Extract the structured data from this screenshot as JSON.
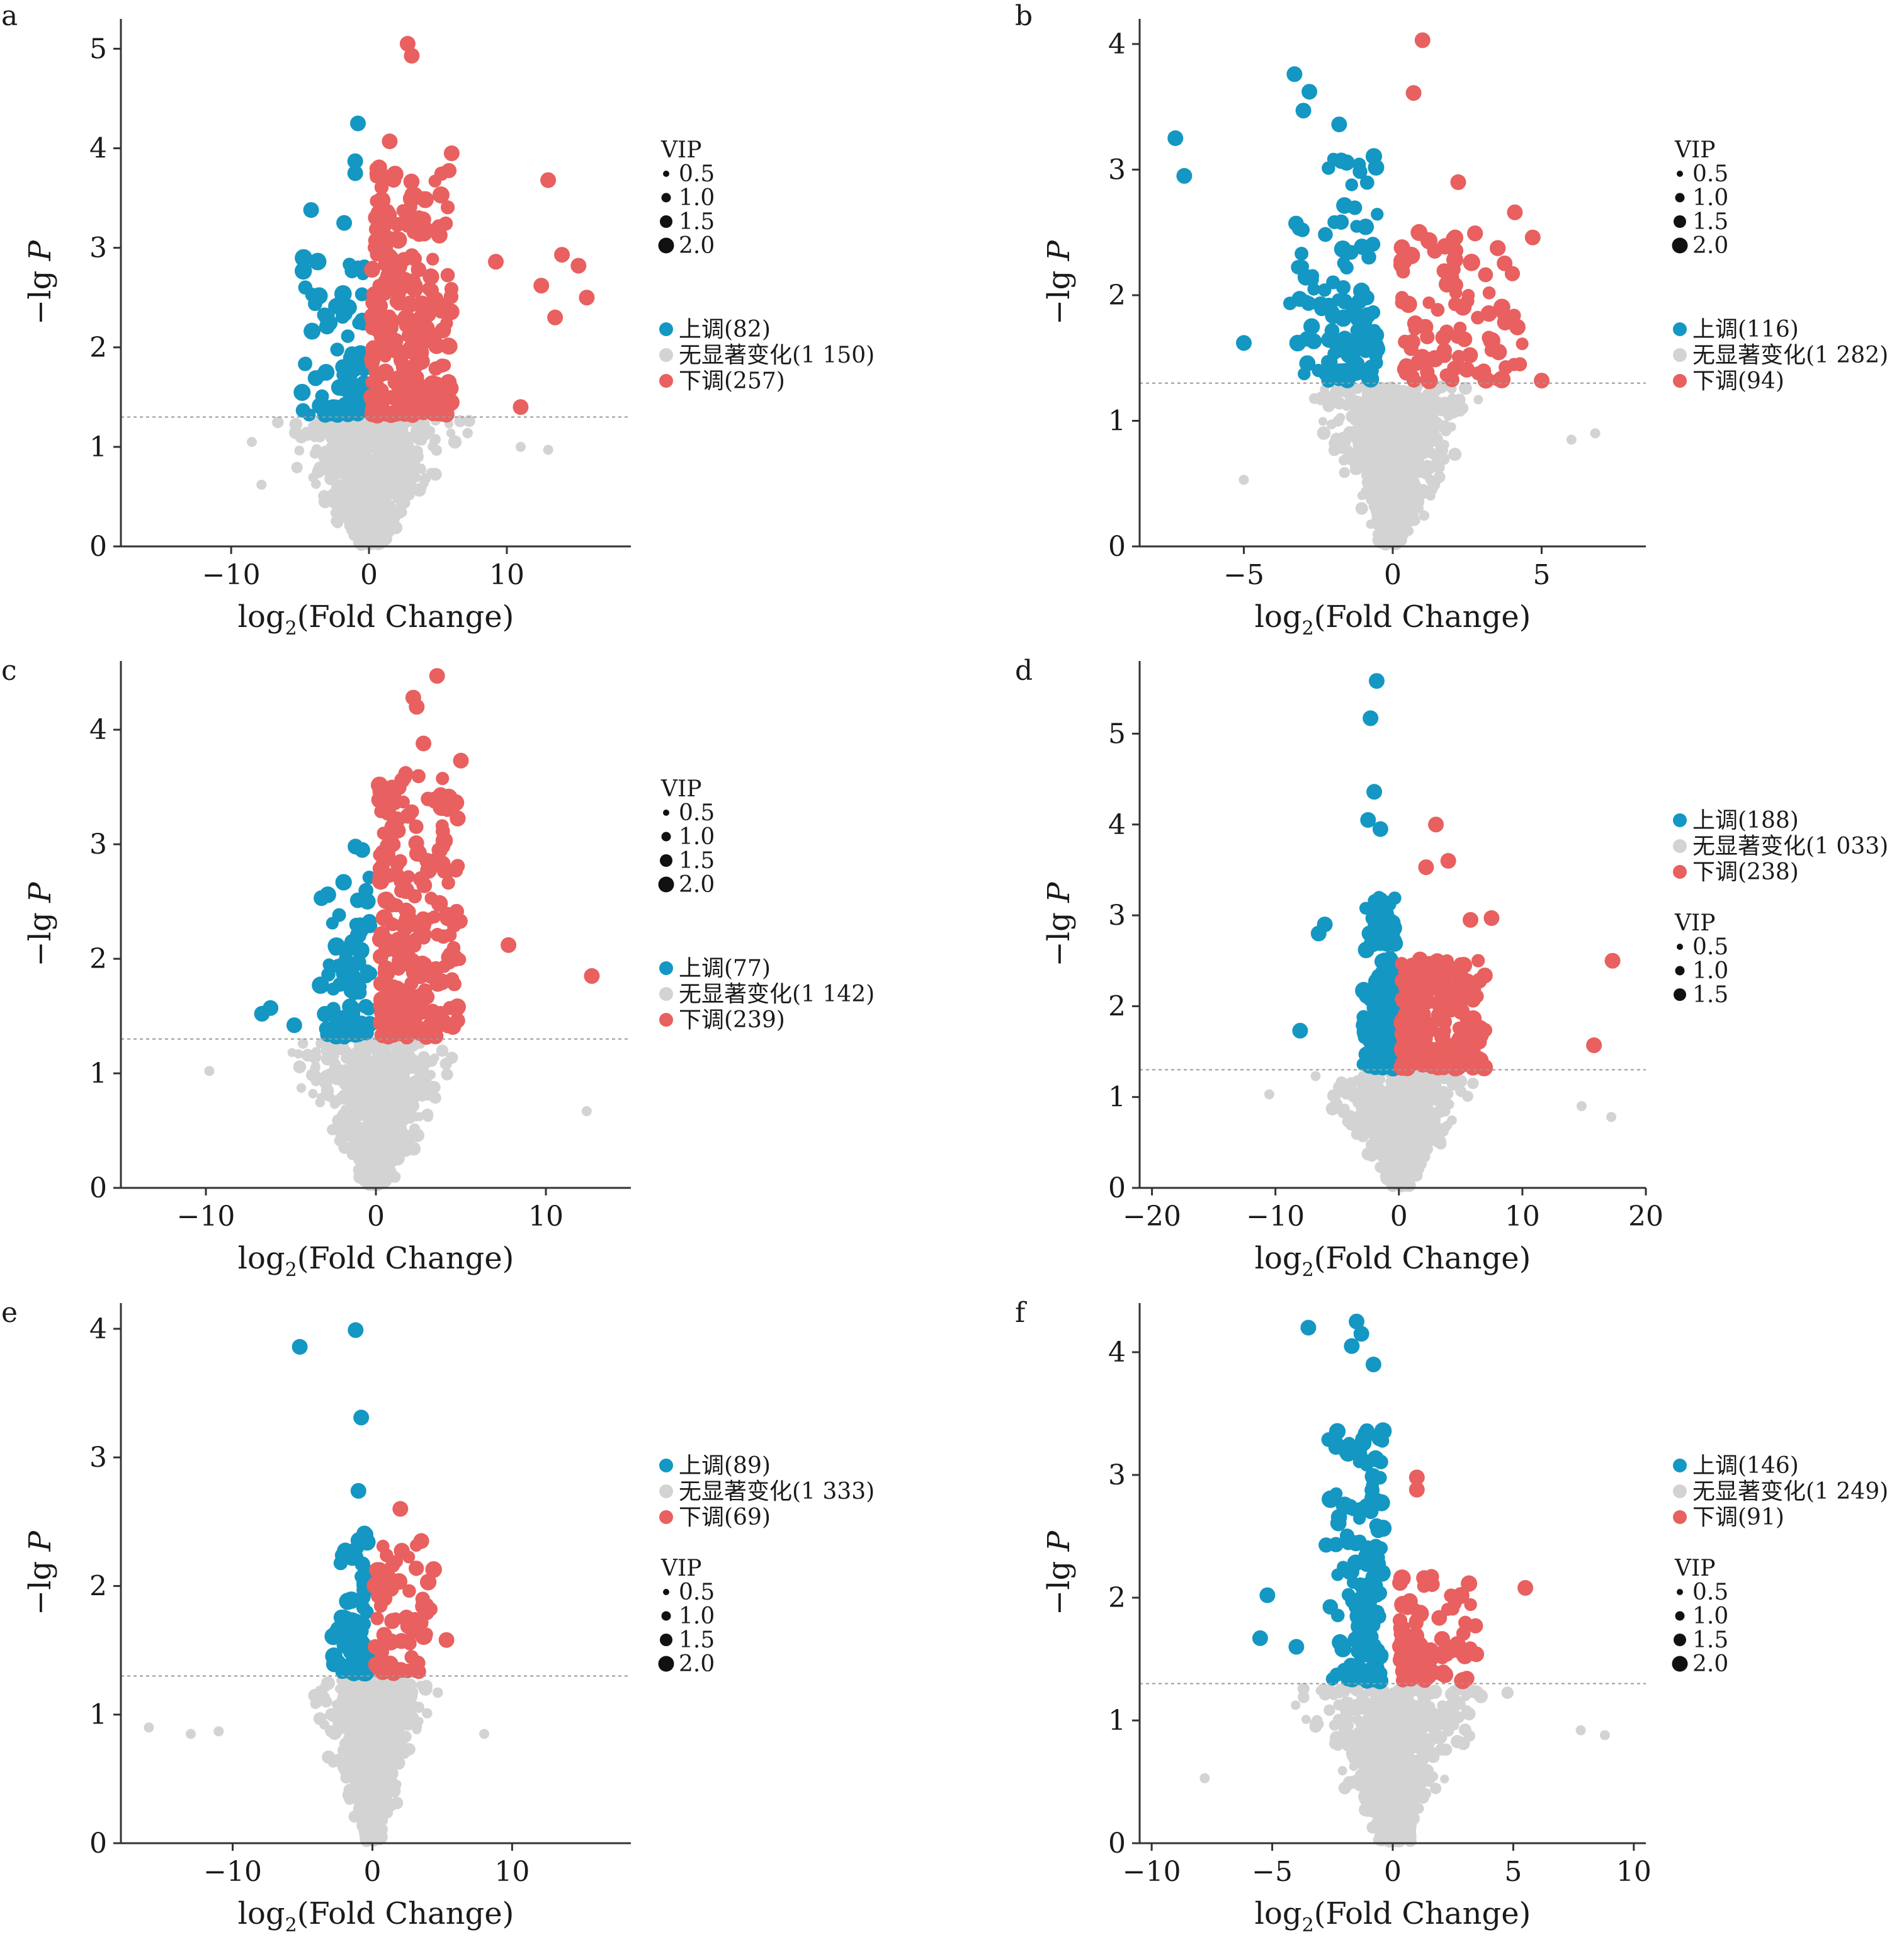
{
  "colors": {
    "up": "#1497c2",
    "none": "#d3d3d3",
    "down": "#e8605f",
    "threshold": "#999999",
    "axis": "#333333"
  },
  "panels": [
    {
      "letter": "a",
      "vip_first": true,
      "vip_sizes": [
        "0.5",
        "1.0",
        "1.5",
        "2.0"
      ],
      "chart_data": {
        "type": "scatter",
        "x_label": "log2(Fold Change)",
        "y_label": "−lg P",
        "xlim": [
          -18,
          19
        ],
        "ylim": [
          0,
          5.3
        ],
        "x_ticks": [
          -10,
          0,
          10
        ],
        "y_ticks": [
          0,
          1,
          2,
          3,
          4,
          5
        ],
        "threshold": 1.3,
        "vip_title": "VIP",
        "legend": [
          {
            "key": "up",
            "label": "上调(82)",
            "count": 82
          },
          {
            "key": "none",
            "label": "无显著变化(1 150)",
            "count": 1150
          },
          {
            "key": "down",
            "label": "下调(257)",
            "count": 257
          }
        ],
        "x_spread": 4.2,
        "up_x": [
          -5,
          -0.3
        ],
        "down_x": [
          0.2,
          6
        ],
        "up_max": 2.9,
        "down_max": 3.8,
        "highlights": [
          {
            "x": 2.8,
            "y": 5.05,
            "g": "down"
          },
          {
            "x": 3.1,
            "y": 4.93,
            "g": "down"
          },
          {
            "x": -0.8,
            "y": 4.25,
            "g": "up"
          },
          {
            "x": 1.5,
            "y": 4.07,
            "g": "down"
          },
          {
            "x": -1.0,
            "y": 3.87,
            "g": "up"
          },
          {
            "x": -1.0,
            "y": 3.75,
            "g": "up"
          },
          {
            "x": 6.0,
            "y": 3.95,
            "g": "down"
          },
          {
            "x": 13.0,
            "y": 3.68,
            "g": "down"
          },
          {
            "x": -4.2,
            "y": 3.38,
            "g": "up"
          },
          {
            "x": -1.8,
            "y": 3.25,
            "g": "up"
          },
          {
            "x": 14.0,
            "y": 2.93,
            "g": "down"
          },
          {
            "x": 15.2,
            "y": 2.82,
            "g": "down"
          },
          {
            "x": 9.2,
            "y": 2.86,
            "g": "down"
          },
          {
            "x": 15.8,
            "y": 2.5,
            "g": "down"
          },
          {
            "x": 12.5,
            "y": 2.62,
            "g": "down"
          },
          {
            "x": 13.5,
            "y": 2.3,
            "g": "down"
          },
          {
            "x": 11.0,
            "y": 1.4,
            "g": "down"
          },
          {
            "x": -8.5,
            "y": 1.05,
            "g": "none"
          },
          {
            "x": 13.0,
            "y": 0.97,
            "g": "none"
          },
          {
            "x": 11.0,
            "y": 1.0,
            "g": "none"
          },
          {
            "x": -7.8,
            "y": 0.62,
            "g": "none"
          }
        ]
      }
    },
    {
      "letter": "b",
      "vip_first": true,
      "vip_sizes": [
        "0.5",
        "1.0",
        "1.5",
        "2.0"
      ],
      "chart_data": {
        "type": "scatter",
        "x_label": "log2(Fold Change)",
        "y_label": "−lg P",
        "xlim": [
          -8.5,
          8.5
        ],
        "ylim": [
          0,
          4.2
        ],
        "x_ticks": [
          -5,
          0,
          5
        ],
        "y_ticks": [
          0,
          1,
          2,
          3,
          4
        ],
        "threshold": 1.3,
        "vip_title": "VIP",
        "legend": [
          {
            "key": "up",
            "label": "上调(116)",
            "count": 116
          },
          {
            "key": "none",
            "label": "无显著变化(1 282)",
            "count": 1282
          },
          {
            "key": "down",
            "label": "下调(94)",
            "count": 94
          }
        ],
        "x_spread": 1.8,
        "up_x": [
          -3.5,
          -0.5
        ],
        "down_x": [
          0.3,
          4.5
        ],
        "up_max": 3.1,
        "down_max": 2.6,
        "highlights": [
          {
            "x": -7.3,
            "y": 3.25,
            "g": "up"
          },
          {
            "x": -7.0,
            "y": 2.95,
            "g": "up"
          },
          {
            "x": -3.3,
            "y": 3.76,
            "g": "up"
          },
          {
            "x": -2.8,
            "y": 3.62,
            "g": "up"
          },
          {
            "x": -3.0,
            "y": 3.47,
            "g": "up"
          },
          {
            "x": -1.8,
            "y": 3.36,
            "g": "up"
          },
          {
            "x": 1.0,
            "y": 4.03,
            "g": "down"
          },
          {
            "x": 0.7,
            "y": 3.61,
            "g": "down"
          },
          {
            "x": 2.2,
            "y": 2.9,
            "g": "down"
          },
          {
            "x": 4.1,
            "y": 2.66,
            "g": "down"
          },
          {
            "x": 4.7,
            "y": 2.46,
            "g": "down"
          },
          {
            "x": -5.0,
            "y": 1.62,
            "g": "up"
          },
          {
            "x": 5.0,
            "y": 1.32,
            "g": "down"
          },
          {
            "x": 6.8,
            "y": 0.9,
            "g": "none"
          },
          {
            "x": 6.0,
            "y": 0.85,
            "g": "none"
          },
          {
            "x": -5.0,
            "y": 0.53,
            "g": "none"
          }
        ]
      }
    },
    {
      "letter": "c",
      "vip_first": true,
      "vip_sizes": [
        "0.5",
        "1.0",
        "1.5",
        "2.0"
      ],
      "chart_data": {
        "type": "scatter",
        "x_label": "log2(Fold Change)",
        "y_label": "−lg P",
        "xlim": [
          -15,
          15
        ],
        "ylim": [
          0,
          4.6
        ],
        "x_ticks": [
          -10,
          0,
          10
        ],
        "y_ticks": [
          0,
          1,
          2,
          3,
          4
        ],
        "threshold": 1.3,
        "vip_title": "VIP",
        "legend": [
          {
            "key": "up",
            "label": "上调(77)",
            "count": 77
          },
          {
            "key": "none",
            "label": "无显著变化(1 142)",
            "count": 1142
          },
          {
            "key": "down",
            "label": "下调(239)",
            "count": 239
          }
        ],
        "x_spread": 3.2,
        "up_x": [
          -3.5,
          -0.3
        ],
        "down_x": [
          0.2,
          5
        ],
        "up_max": 2.7,
        "down_max": 3.6,
        "highlights": [
          {
            "x": 3.6,
            "y": 4.47,
            "g": "down"
          },
          {
            "x": 2.2,
            "y": 4.28,
            "g": "down"
          },
          {
            "x": 2.4,
            "y": 4.2,
            "g": "down"
          },
          {
            "x": 2.8,
            "y": 3.88,
            "g": "down"
          },
          {
            "x": 5.0,
            "y": 3.73,
            "g": "down"
          },
          {
            "x": -1.2,
            "y": 2.98,
            "g": "up"
          },
          {
            "x": -0.8,
            "y": 2.95,
            "g": "up"
          },
          {
            "x": -3.2,
            "y": 2.53,
            "g": "up"
          },
          {
            "x": 7.8,
            "y": 2.12,
            "g": "down"
          },
          {
            "x": 12.7,
            "y": 1.85,
            "g": "down"
          },
          {
            "x": -6.2,
            "y": 1.57,
            "g": "up"
          },
          {
            "x": -6.7,
            "y": 1.52,
            "g": "up"
          },
          {
            "x": -4.8,
            "y": 1.42,
            "g": "up"
          },
          {
            "x": -9.8,
            "y": 1.02,
            "g": "none"
          },
          {
            "x": 12.4,
            "y": 0.67,
            "g": "none"
          }
        ]
      }
    },
    {
      "letter": "d",
      "vip_first": false,
      "vip_sizes": [
        "0.5",
        "1.0",
        "1.5"
      ],
      "chart_data": {
        "type": "scatter",
        "x_label": "log2(Fold Change)",
        "y_label": "−lg P",
        "xlim": [
          -21,
          20
        ],
        "ylim": [
          0,
          5.8
        ],
        "x_ticks": [
          -20,
          -10,
          0,
          10,
          20
        ],
        "y_ticks": [
          0,
          1,
          2,
          3,
          4,
          5
        ],
        "threshold": 1.3,
        "vip_title": "VIP",
        "legend": [
          {
            "key": "up",
            "label": "上调(188)",
            "count": 188
          },
          {
            "key": "none",
            "label": "无显著变化(1 033)",
            "count": 1033
          },
          {
            "key": "down",
            "label": "下调(238)",
            "count": 238
          }
        ],
        "x_spread": 4.0,
        "up_x": [
          -3,
          -0.3
        ],
        "down_x": [
          0.2,
          7
        ],
        "up_max": 3.2,
        "down_max": 2.5,
        "highlights": [
          {
            "x": -1.8,
            "y": 5.58,
            "g": "up"
          },
          {
            "x": -2.3,
            "y": 5.17,
            "g": "up"
          },
          {
            "x": -2.0,
            "y": 4.36,
            "g": "up"
          },
          {
            "x": -2.5,
            "y": 4.05,
            "g": "up"
          },
          {
            "x": -1.5,
            "y": 3.95,
            "g": "up"
          },
          {
            "x": 3.0,
            "y": 4.0,
            "g": "down"
          },
          {
            "x": 4.0,
            "y": 3.6,
            "g": "down"
          },
          {
            "x": 2.2,
            "y": 3.53,
            "g": "down"
          },
          {
            "x": -6.0,
            "y": 2.9,
            "g": "up"
          },
          {
            "x": -6.5,
            "y": 2.8,
            "g": "up"
          },
          {
            "x": 5.8,
            "y": 2.95,
            "g": "down"
          },
          {
            "x": 7.5,
            "y": 2.97,
            "g": "down"
          },
          {
            "x": 17.3,
            "y": 2.5,
            "g": "down"
          },
          {
            "x": 15.8,
            "y": 1.57,
            "g": "down"
          },
          {
            "x": -8.0,
            "y": 1.73,
            "g": "up"
          },
          {
            "x": -10.5,
            "y": 1.03,
            "g": "none"
          },
          {
            "x": 14.8,
            "y": 0.9,
            "g": "none"
          },
          {
            "x": 17.2,
            "y": 0.78,
            "g": "none"
          }
        ]
      }
    },
    {
      "letter": "e",
      "vip_first": false,
      "vip_sizes": [
        "0.5",
        "1.0",
        "1.5",
        "2.0"
      ],
      "chart_data": {
        "type": "scatter",
        "x_label": "log2(Fold Change)",
        "y_label": "−lg P",
        "xlim": [
          -18,
          18.5
        ],
        "ylim": [
          0,
          4.2
        ],
        "x_ticks": [
          -10,
          0,
          10
        ],
        "y_ticks": [
          0,
          1,
          2,
          3,
          4
        ],
        "threshold": 1.3,
        "vip_title": "VIP",
        "legend": [
          {
            "key": "up",
            "label": "上调(89)",
            "count": 89
          },
          {
            "key": "none",
            "label": "无显著变化(1 333)",
            "count": 1333
          },
          {
            "key": "down",
            "label": "下调(69)",
            "count": 69
          }
        ],
        "x_spread": 2.6,
        "up_x": [
          -3,
          -0.3
        ],
        "down_x": [
          0.2,
          4.5
        ],
        "up_max": 2.4,
        "down_max": 2.3,
        "highlights": [
          {
            "x": -1.2,
            "y": 3.99,
            "g": "up"
          },
          {
            "x": -5.2,
            "y": 3.86,
            "g": "up"
          },
          {
            "x": -0.8,
            "y": 3.31,
            "g": "up"
          },
          {
            "x": -1.0,
            "y": 2.74,
            "g": "up"
          },
          {
            "x": 2.0,
            "y": 2.6,
            "g": "down"
          },
          {
            "x": 3.5,
            "y": 2.35,
            "g": "down"
          },
          {
            "x": 5.3,
            "y": 1.58,
            "g": "down"
          },
          {
            "x": -16.0,
            "y": 0.9,
            "g": "none"
          },
          {
            "x": -13.0,
            "y": 0.85,
            "g": "none"
          },
          {
            "x": -11.0,
            "y": 0.87,
            "g": "none"
          },
          {
            "x": 8.0,
            "y": 0.85,
            "g": "none"
          }
        ]
      }
    },
    {
      "letter": "f",
      "vip_first": false,
      "vip_sizes": [
        "0.5",
        "1.0",
        "1.5",
        "2.0"
      ],
      "chart_data": {
        "type": "scatter",
        "x_label": "log2(Fold Change)",
        "y_label": "−lg P",
        "xlim": [
          -10.5,
          10.5
        ],
        "ylim": [
          0,
          4.4
        ],
        "x_ticks": [
          -10,
          -5,
          0,
          5,
          10
        ],
        "y_ticks": [
          0,
          1,
          2,
          3,
          4
        ],
        "threshold": 1.3,
        "vip_title": "VIP",
        "legend": [
          {
            "key": "up",
            "label": "上调(146)",
            "count": 146
          },
          {
            "key": "none",
            "label": "无显著变化(1 249)",
            "count": 1249
          },
          {
            "key": "down",
            "label": "下调(91)",
            "count": 91
          }
        ],
        "x_spread": 2.4,
        "up_x": [
          -2.8,
          -0.4
        ],
        "down_x": [
          0.3,
          3.5
        ],
        "up_max": 3.4,
        "down_max": 2.2,
        "highlights": [
          {
            "x": -1.5,
            "y": 4.25,
            "g": "up"
          },
          {
            "x": -3.5,
            "y": 4.2,
            "g": "up"
          },
          {
            "x": -1.3,
            "y": 4.15,
            "g": "up"
          },
          {
            "x": -1.7,
            "y": 4.05,
            "g": "up"
          },
          {
            "x": -0.8,
            "y": 3.9,
            "g": "up"
          },
          {
            "x": 1.0,
            "y": 2.98,
            "g": "down"
          },
          {
            "x": 1.0,
            "y": 2.88,
            "g": "down"
          },
          {
            "x": 5.5,
            "y": 2.08,
            "g": "down"
          },
          {
            "x": -5.2,
            "y": 2.02,
            "g": "up"
          },
          {
            "x": -5.5,
            "y": 1.67,
            "g": "up"
          },
          {
            "x": -4.0,
            "y": 1.6,
            "g": "up"
          },
          {
            "x": -7.8,
            "y": 0.53,
            "g": "none"
          },
          {
            "x": 7.8,
            "y": 0.92,
            "g": "none"
          },
          {
            "x": 8.8,
            "y": 0.88,
            "g": "none"
          }
        ]
      }
    }
  ]
}
